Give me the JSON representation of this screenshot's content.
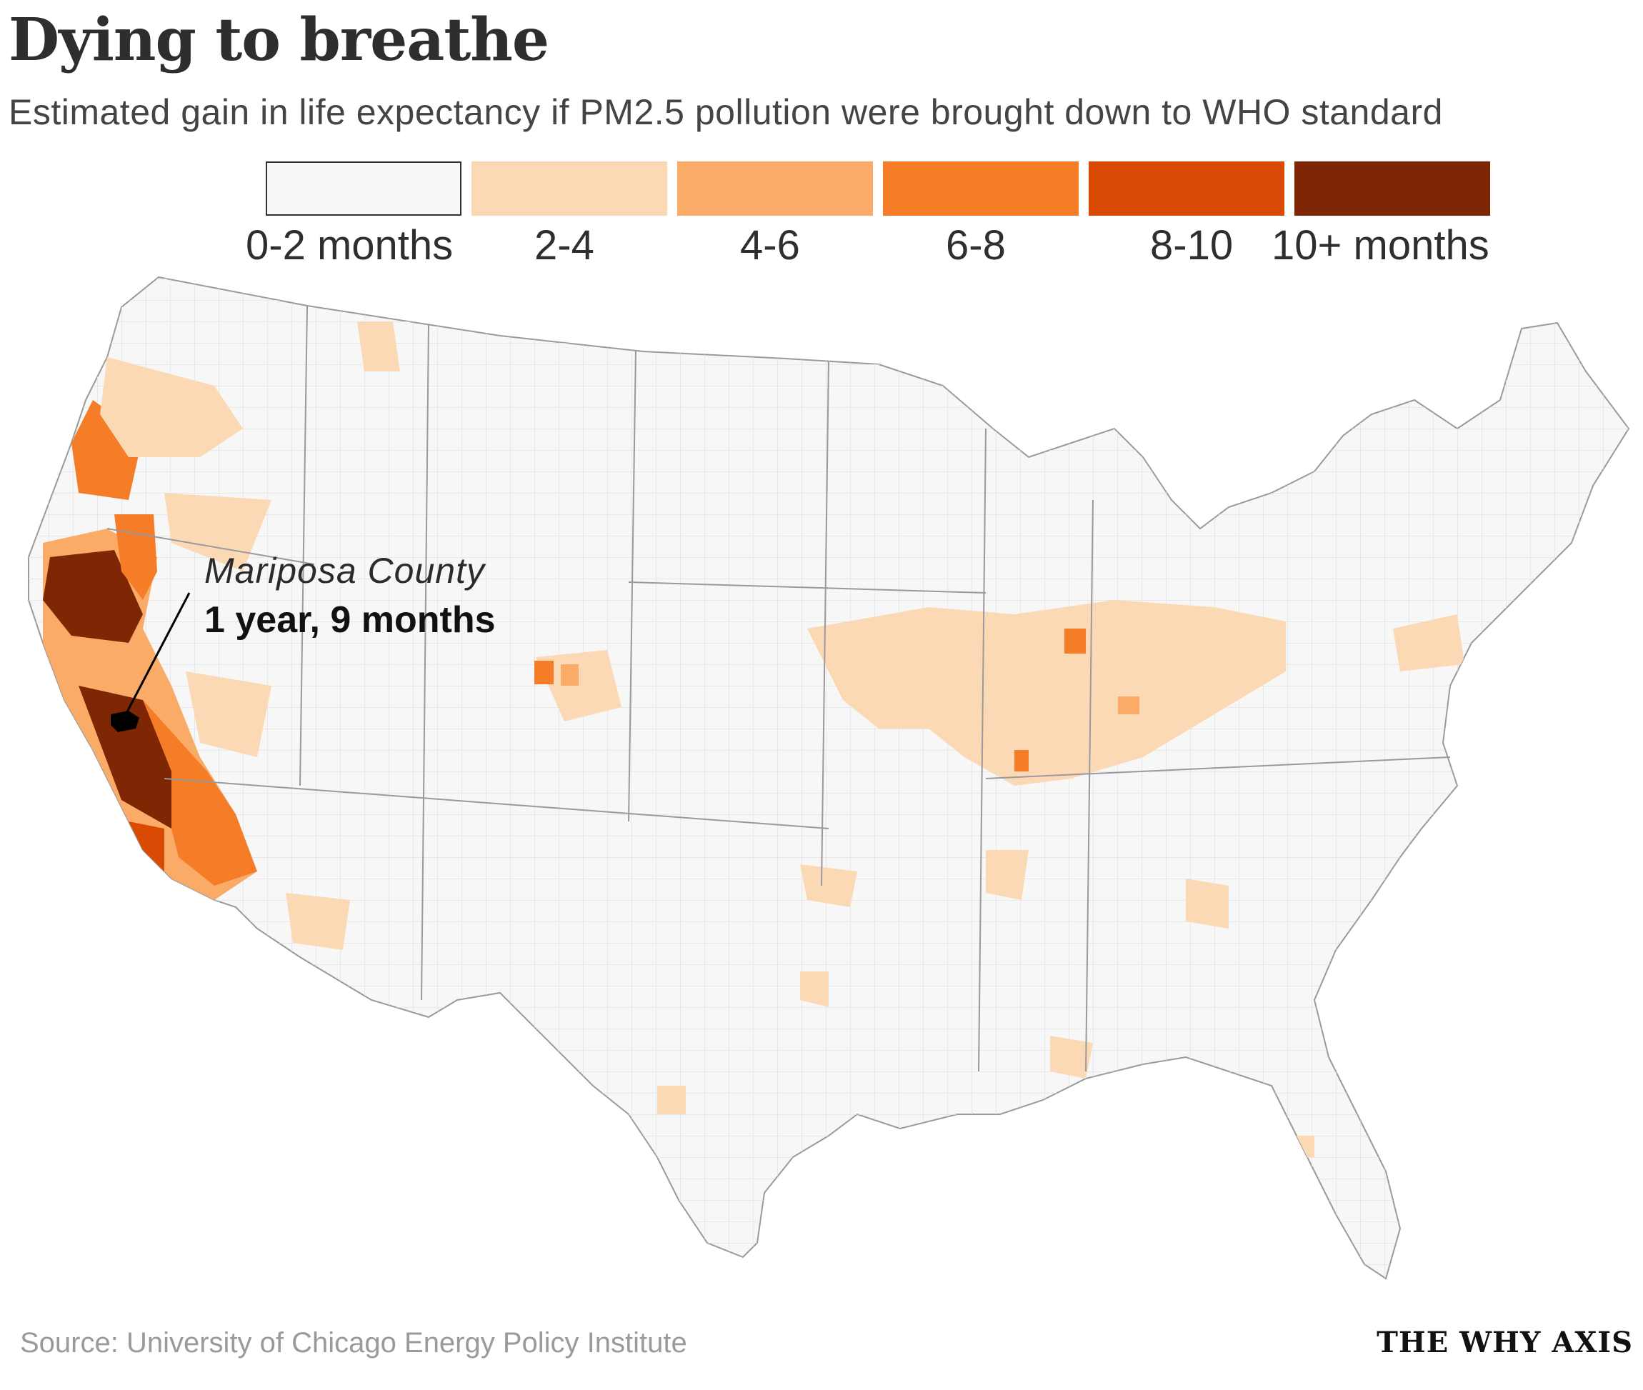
{
  "title": "Dying to breathe",
  "subtitle": "Estimated gain in life expectancy if PM2.5 pollution were brought down to WHO standard",
  "legend": {
    "bins": [
      {
        "label": "0-2 months",
        "color": "#f7f7f7"
      },
      {
        "label": "2-4",
        "color": "#fcd9b5"
      },
      {
        "label": "4-6",
        "color": "#fbab68"
      },
      {
        "label": "6-8",
        "color": "#f57d28"
      },
      {
        "label": "8-10",
        "color": "#d94a05"
      },
      {
        "label": "10+ months",
        "color": "#7f2704"
      }
    ]
  },
  "annotation": {
    "county": "Mariposa County",
    "value": "1 year, 9 months"
  },
  "source": "Source: University of Chicago Energy Policy Institute",
  "brand": "THE WHY AXIS"
}
